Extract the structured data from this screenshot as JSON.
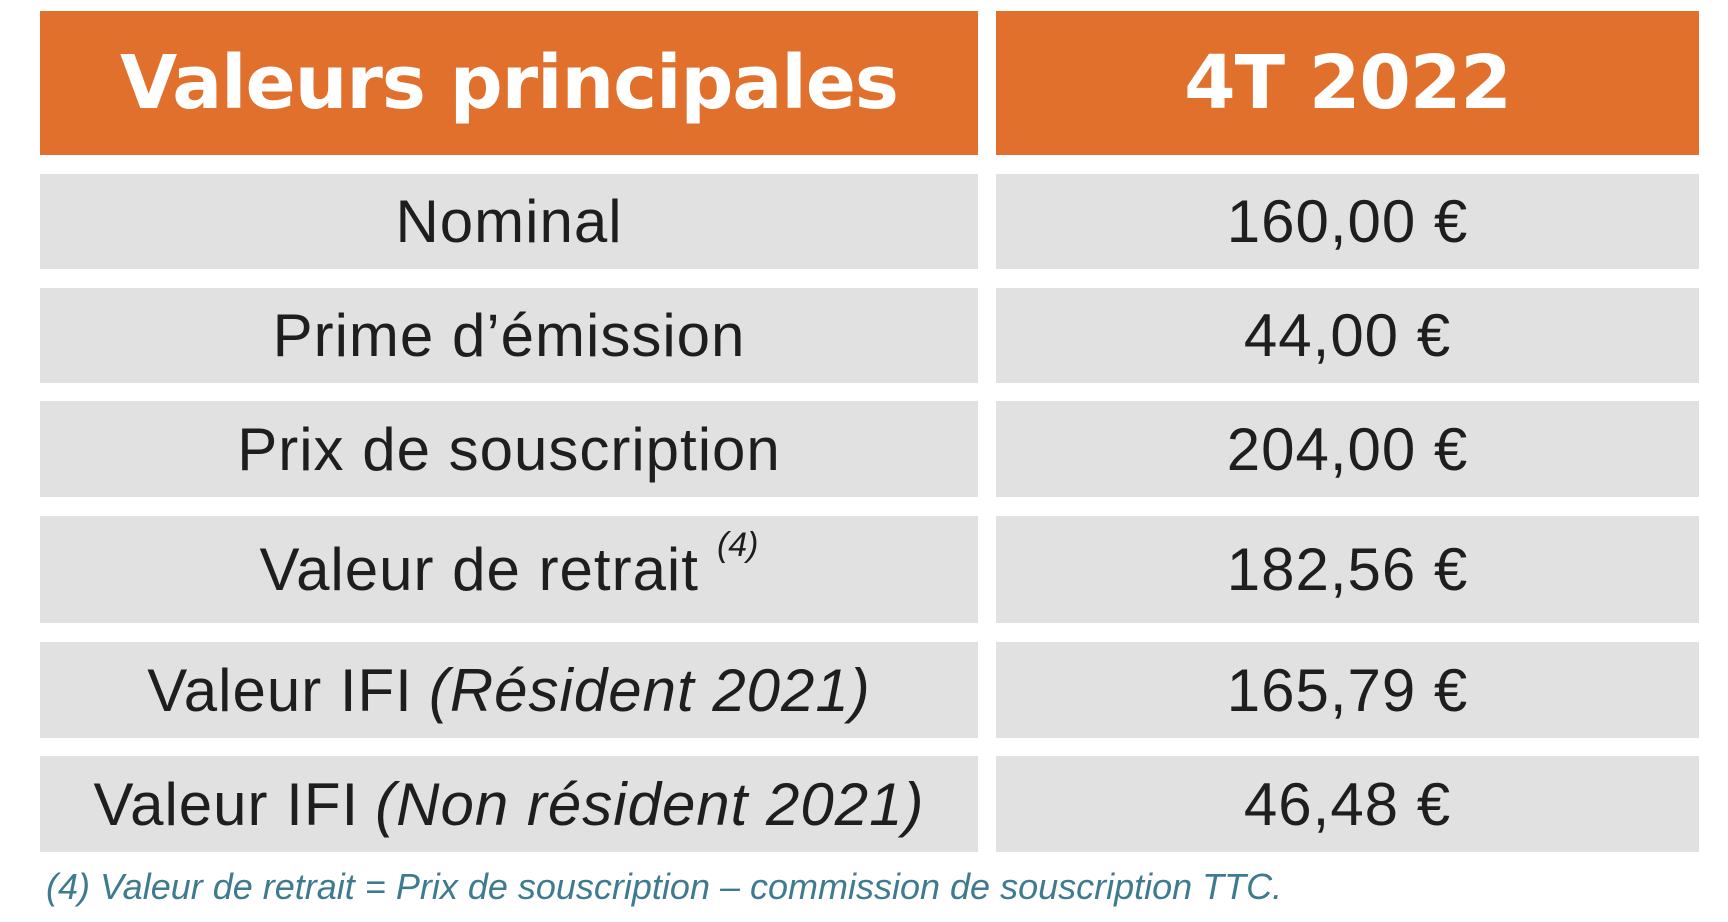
{
  "table": {
    "header": {
      "label": "Valeurs principales",
      "period": "4T 2022"
    },
    "rows": [
      {
        "label": "Nominal",
        "value": "160,00 €"
      },
      {
        "label": "Prime d’émission",
        "value": "44,00 €"
      },
      {
        "label": "Prix de souscription",
        "value": "204,00 €"
      },
      {
        "label": "Valeur de retrait",
        "note_marker": "(4)",
        "value": "182,56 €"
      },
      {
        "label": "Valeur IFI",
        "qualifier": "(Résident 2021)",
        "value": "165,79 €"
      },
      {
        "label": "Valeur IFI",
        "qualifier": "(Non résident 2021)",
        "value": "46,48 €"
      }
    ]
  },
  "footnote": "(4) Valeur de retrait = Prix de souscription – commission de souscription TTC.",
  "colors": {
    "header_bg": "#e0702c",
    "header_text": "#ffffff",
    "row_bg": "#e1e1e1",
    "footnote_text": "#3f7b8f"
  }
}
